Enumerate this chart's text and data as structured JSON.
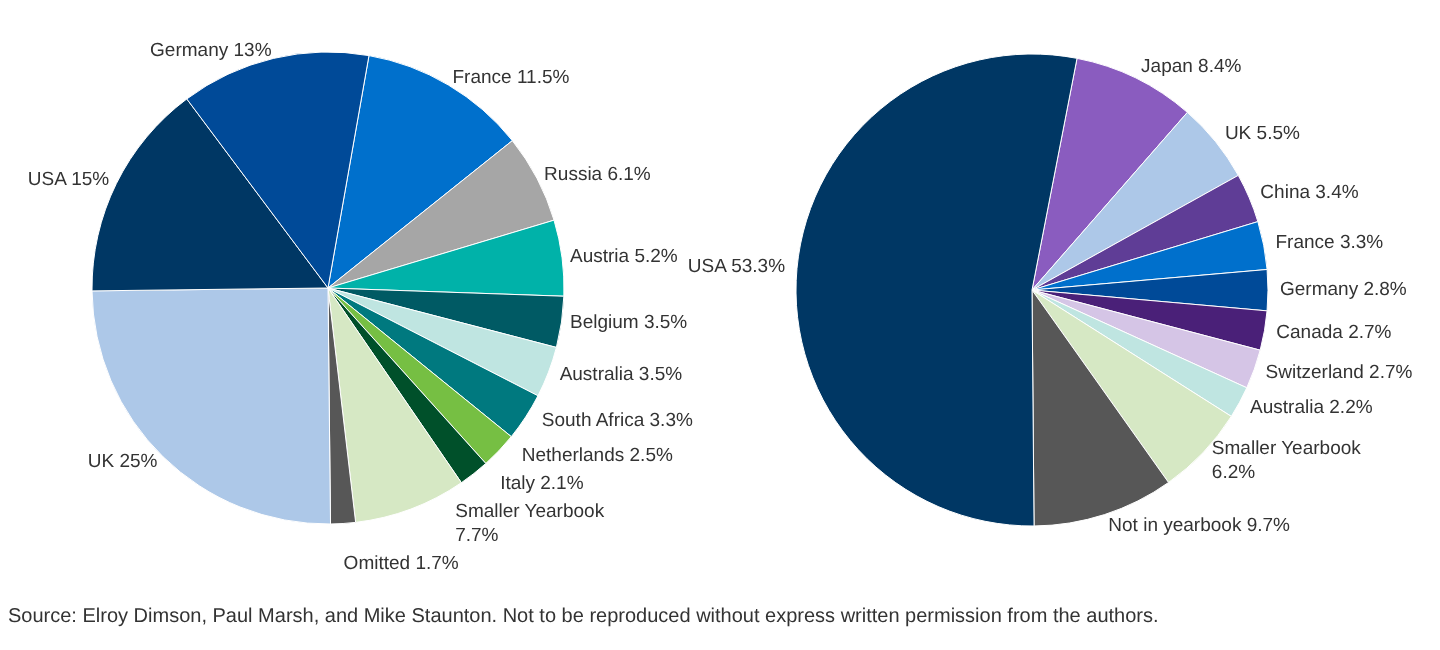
{
  "chart_data": [
    {
      "type": "pie",
      "categories": [
        "France",
        "Russia",
        "Austria",
        "Belgium",
        "Australia",
        "South Africa",
        "Netherlands",
        "Italy",
        "Smaller Yearbook",
        "Omitted",
        "UK",
        "USA",
        "Germany"
      ],
      "values": [
        11.5,
        6.1,
        5.2,
        3.5,
        3.5,
        3.3,
        2.5,
        2.1,
        7.7,
        1.7,
        25,
        15,
        13
      ],
      "value_labels": [
        "11.5%",
        "6.1%",
        "5.2%",
        "3.5%",
        "3.5%",
        "3.3%",
        "2.5%",
        "2.1%",
        "7.7%",
        "1.7%",
        "25%",
        "15%",
        "13%"
      ],
      "colors": [
        "#0070cc",
        "#a6a6a6",
        "#00b2a9",
        "#005a64",
        "#bfe5e1",
        "#00797f",
        "#76bf43",
        "#00502a",
        "#d6e8c4",
        "#575757",
        "#adc8e8",
        "#003764",
        "#004a98"
      ],
      "annotations": [
        "Source: Elroy Dimson, Paul Marsh, and Mike Staunton. Not to be reproduced without express written permission from the authors."
      ]
    },
    {
      "type": "pie",
      "categories": [
        "Japan",
        "UK",
        "China",
        "France",
        "Germany",
        "Canada",
        "Switzerland",
        "Australia",
        "Smaller Yearbook",
        "Not in yearbook",
        "USA"
      ],
      "values": [
        8.4,
        5.5,
        3.4,
        3.3,
        2.8,
        2.7,
        2.7,
        2.2,
        6.2,
        9.7,
        53.3
      ],
      "value_labels": [
        "8.4%",
        "5.5%",
        "3.4%",
        "3.3%",
        "2.8%",
        "2.7%",
        "2.7%",
        "2.2%",
        "6.2%",
        "9.7%",
        "53.3%"
      ],
      "colors": [
        "#8a5cbf",
        "#adc8e8",
        "#5f3d96",
        "#0070cc",
        "#004a98",
        "#4a2078",
        "#d5c5e6",
        "#bfe5e1",
        "#d6e8c4",
        "#575757",
        "#003764"
      ]
    }
  ]
}
